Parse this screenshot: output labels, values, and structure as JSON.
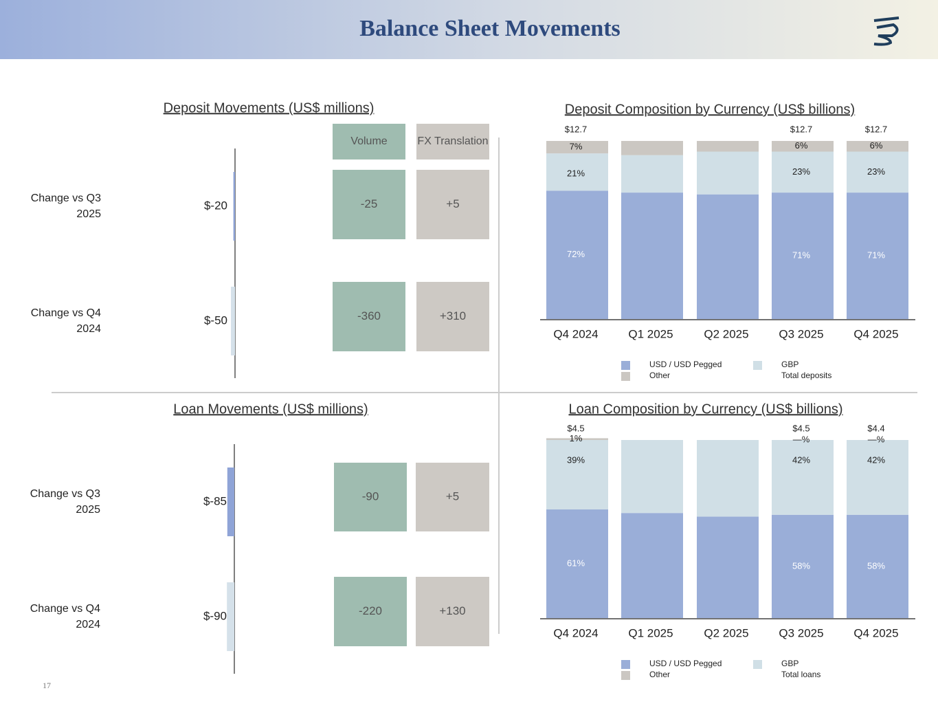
{
  "title": "Balance Sheet Movements",
  "page_number": "17",
  "chart_data": [
    {
      "type": "hbar",
      "title": "Deposit Movements (US$ millions)",
      "categories": [
        "Change vs Q3 2025",
        "Change vs Q4 2024"
      ],
      "values": [
        -20,
        -50
      ],
      "value_labels": [
        "$-20",
        "$-50"
      ],
      "colors": [
        "#8fa4d7",
        "#d5e1ea"
      ],
      "table": {
        "columns": [
          "Volume",
          "FX Translation"
        ],
        "rows": [
          [
            "-25",
            "+5"
          ],
          [
            "-360",
            "+310"
          ]
        ]
      }
    },
    {
      "type": "stacked_bar",
      "title": "Deposit Composition by Currency (US$ billions)",
      "categories": [
        "Q4 2024",
        "Q1 2025",
        "Q2 2025",
        "Q3 2025",
        "Q4 2025"
      ],
      "series": [
        {
          "name": "USD / USD Pegged",
          "color": "#9aaed8",
          "values": [
            72,
            71,
            70,
            71,
            71
          ],
          "value_labels": [
            "72%",
            null,
            null,
            "71%",
            "71%"
          ]
        },
        {
          "name": "GBP",
          "color": "#d0dfe6",
          "values": [
            21,
            21,
            24,
            23,
            23
          ],
          "value_labels": [
            "21%",
            null,
            null,
            "23%",
            "23%"
          ]
        },
        {
          "name": "Other",
          "color": "#cbc7c2",
          "values": [
            7,
            8,
            6,
            6,
            6
          ],
          "value_labels": [
            "7%",
            null,
            null,
            "6%",
            "6%"
          ]
        }
      ],
      "totals": {
        "name": "Total deposits",
        "values": [
          12.7,
          null,
          null,
          12.7,
          12.7
        ],
        "value_labels": [
          "$12.7",
          null,
          null,
          "$12.7",
          "$12.7"
        ]
      }
    },
    {
      "type": "hbar",
      "title": "Loan Movements (US$ millions)",
      "categories": [
        "Change vs Q3 2025",
        "Change vs Q4 2024"
      ],
      "values": [
        -85,
        -90
      ],
      "value_labels": [
        "$-85",
        "$-90"
      ],
      "colors": [
        "#8fa4d7",
        "#d5e1ea"
      ],
      "table": {
        "rows": [
          [
            "-90",
            "+5"
          ],
          [
            "-220",
            "+130"
          ]
        ]
      }
    },
    {
      "type": "stacked_bar",
      "title": "Loan Composition by Currency (US$ billions)",
      "categories": [
        "Q4 2024",
        "Q1 2025",
        "Q2 2025",
        "Q3 2025",
        "Q4 2025"
      ],
      "series": [
        {
          "name": "USD / USD Pegged",
          "color": "#9aaed8",
          "values": [
            61,
            59,
            57,
            58,
            58
          ],
          "value_labels": [
            "61%",
            null,
            null,
            "58%",
            "58%"
          ]
        },
        {
          "name": "GBP",
          "color": "#d0dfe6",
          "values": [
            39,
            41,
            43,
            42,
            42
          ],
          "value_labels": [
            "39%",
            null,
            null,
            "42%",
            "42%"
          ]
        },
        {
          "name": "Other",
          "color": "#cbc7c2",
          "values": [
            1,
            0,
            0,
            0,
            0
          ],
          "value_labels": [
            "1%",
            null,
            null,
            "—%",
            "—%"
          ]
        }
      ],
      "totals": {
        "name": "Total loans",
        "values": [
          4.5,
          null,
          null,
          4.5,
          4.4
        ],
        "value_labels": [
          "$4.5",
          null,
          null,
          "$4.5",
          "$4.4"
        ]
      }
    }
  ]
}
